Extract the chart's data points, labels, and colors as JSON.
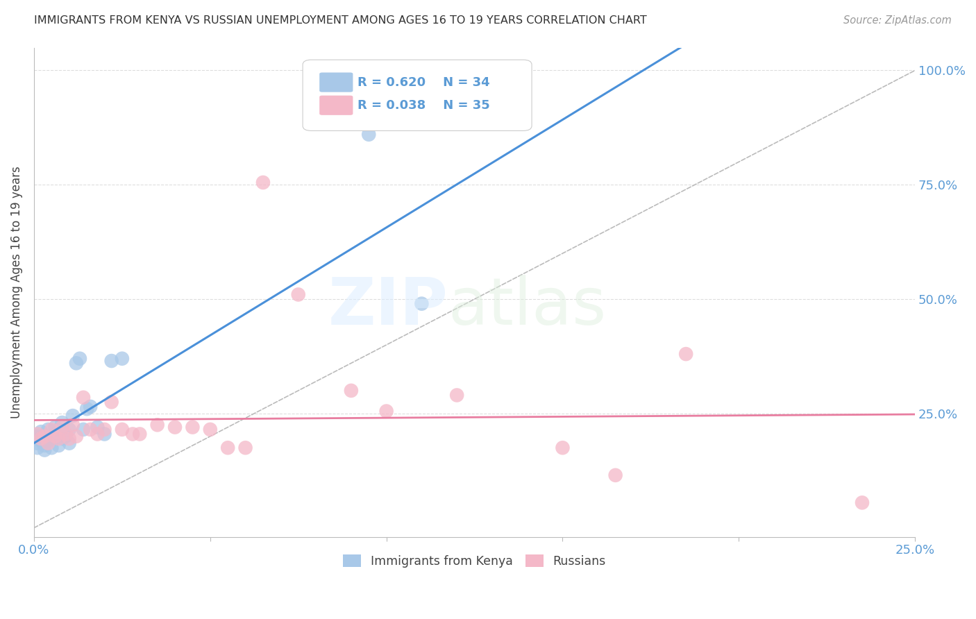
{
  "title": "IMMIGRANTS FROM KENYA VS RUSSIAN UNEMPLOYMENT AMONG AGES 16 TO 19 YEARS CORRELATION CHART",
  "source": "Source: ZipAtlas.com",
  "ylabel": "Unemployment Among Ages 16 to 19 years",
  "xlim": [
    0.0,
    0.25
  ],
  "ylim": [
    -0.02,
    1.05
  ],
  "xticks": [
    0.0,
    0.05,
    0.1,
    0.15,
    0.2,
    0.25
  ],
  "xticklabels": [
    "0.0%",
    "",
    "",
    "",
    "",
    "25.0%"
  ],
  "yticks": [
    0.0,
    0.25,
    0.5,
    0.75,
    1.0
  ],
  "yticklabels": [
    "",
    "25.0%",
    "50.0%",
    "75.0%",
    "100.0%"
  ],
  "kenya_color": "#a8c8e8",
  "russian_color": "#f4b8c8",
  "kenya_line_color": "#4a90d9",
  "russian_line_color": "#e87da0",
  "diag_line_color": "#bbbbbb",
  "grid_color": "#dddddd",
  "legend_kenya_R": "R = 0.620",
  "legend_kenya_N": "N = 34",
  "legend_russia_R": "R = 0.038",
  "legend_russia_N": "N = 35",
  "kenya_x": [
    0.001,
    0.001,
    0.001,
    0.002,
    0.002,
    0.002,
    0.003,
    0.003,
    0.003,
    0.004,
    0.004,
    0.005,
    0.005,
    0.006,
    0.006,
    0.007,
    0.007,
    0.008,
    0.008,
    0.009,
    0.01,
    0.01,
    0.011,
    0.012,
    0.013,
    0.014,
    0.015,
    0.016,
    0.018,
    0.02,
    0.022,
    0.025,
    0.095,
    0.11
  ],
  "kenya_y": [
    0.185,
    0.2,
    0.175,
    0.19,
    0.21,
    0.195,
    0.18,
    0.2,
    0.17,
    0.215,
    0.19,
    0.175,
    0.195,
    0.205,
    0.22,
    0.18,
    0.215,
    0.195,
    0.23,
    0.2,
    0.185,
    0.215,
    0.245,
    0.36,
    0.37,
    0.215,
    0.26,
    0.265,
    0.22,
    0.205,
    0.365,
    0.37,
    0.86,
    0.49
  ],
  "russia_x": [
    0.001,
    0.002,
    0.003,
    0.004,
    0.005,
    0.006,
    0.007,
    0.008,
    0.009,
    0.01,
    0.011,
    0.012,
    0.014,
    0.016,
    0.018,
    0.02,
    0.022,
    0.025,
    0.028,
    0.03,
    0.035,
    0.04,
    0.045,
    0.05,
    0.055,
    0.06,
    0.065,
    0.075,
    0.09,
    0.1,
    0.12,
    0.15,
    0.165,
    0.185,
    0.235
  ],
  "russia_y": [
    0.205,
    0.195,
    0.2,
    0.185,
    0.215,
    0.2,
    0.195,
    0.22,
    0.205,
    0.195,
    0.225,
    0.2,
    0.285,
    0.215,
    0.205,
    0.215,
    0.275,
    0.215,
    0.205,
    0.205,
    0.225,
    0.22,
    0.22,
    0.215,
    0.175,
    0.175,
    0.755,
    0.51,
    0.3,
    0.255,
    0.29,
    0.175,
    0.115,
    0.38,
    0.055
  ]
}
